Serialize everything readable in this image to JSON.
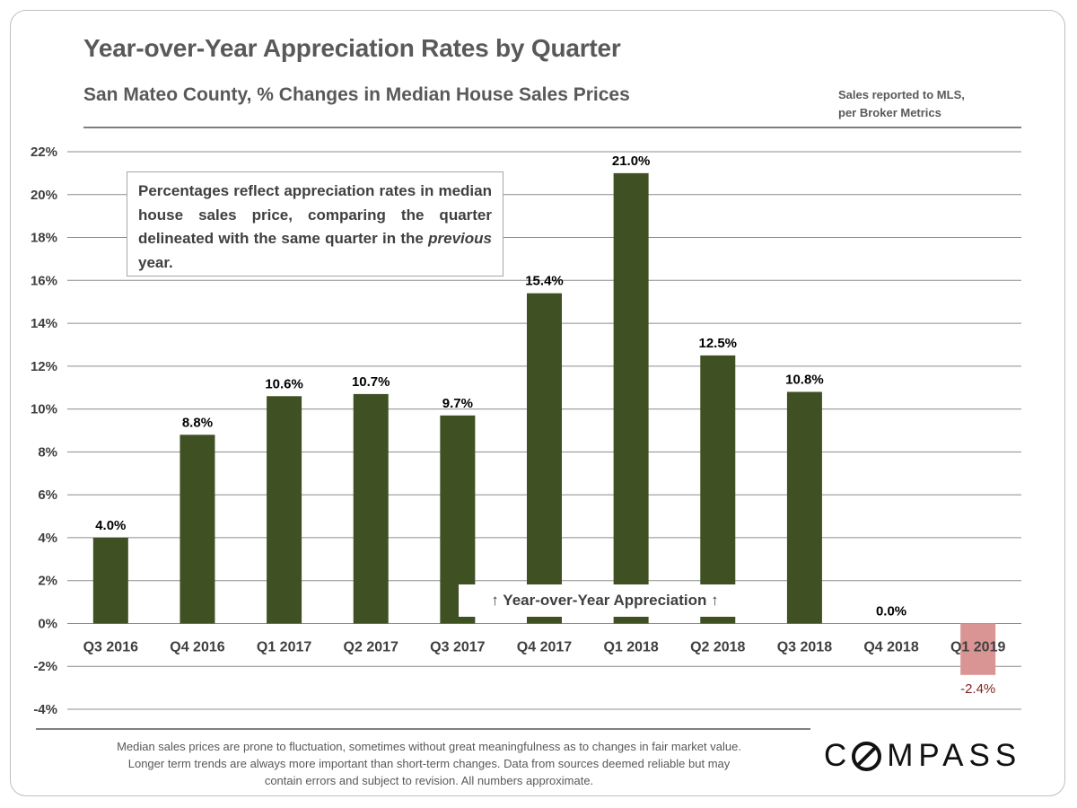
{
  "header": {
    "title": "Year-over-Year Appreciation Rates by Quarter",
    "subtitle": "San Mateo County, % Changes in Median House Sales Prices",
    "source_line1": "Sales reported to MLS,",
    "source_line2": "per Broker Metrics"
  },
  "note_box": {
    "text_before": "Percentages reflect appreciation rates in median house sales price, comparing the quarter delineated with the same quarter in the ",
    "text_italic": "previous",
    "text_after": " year."
  },
  "overlay_label": "↑ Year-over-Year Appreciation ↑",
  "footer": {
    "line1": "Median sales prices are prone to fluctuation, sometimes without great meaningfulness as to changes in fair market value.",
    "line2": "Longer term  trends are always more important than short-term changes. Data from sources deemed  reliable but may",
    "line3": "contain errors and subject to revision. All numbers approximate."
  },
  "logo": {
    "text": "COMPASS",
    "icon": "compass-o-icon"
  },
  "colors": {
    "positive_bar": "#3f5123",
    "negative_bar": "#d99594",
    "grid": "#8c8c8c",
    "label": "#000000",
    "negative_label": "#7f1f1f"
  },
  "chart_data": {
    "type": "bar",
    "categories": [
      "Q3 2016",
      "Q4 2016",
      "Q1 2017",
      "Q2 2017",
      "Q3 2017",
      "Q4 2017",
      "Q1 2018",
      "Q2 2018",
      "Q3 2018",
      "Q4 2018",
      "Q1 2019"
    ],
    "values": [
      4.0,
      8.8,
      10.6,
      10.7,
      9.7,
      15.4,
      21.0,
      12.5,
      10.8,
      0.0,
      -2.4
    ],
    "data_labels": [
      "4.0%",
      "8.8%",
      "10.6%",
      "10.7%",
      "9.7%",
      "15.4%",
      "21.0%",
      "12.5%",
      "10.8%",
      "0.0%",
      "-2.4%"
    ],
    "y_ticks": [
      -4,
      -2,
      0,
      2,
      4,
      6,
      8,
      10,
      12,
      14,
      16,
      18,
      20,
      22
    ],
    "y_tick_labels": [
      "-4%",
      "-2%",
      "0%",
      "2%",
      "4%",
      "6%",
      "8%",
      "10%",
      "12%",
      "14%",
      "16%",
      "18%",
      "20%",
      "22%"
    ],
    "ylim": [
      -4,
      22
    ],
    "grid": true,
    "legend": "none"
  }
}
